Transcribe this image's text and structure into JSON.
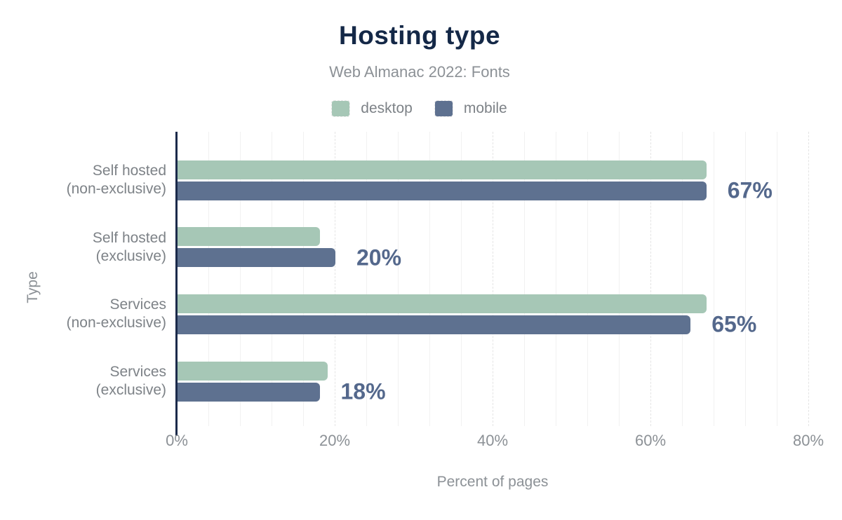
{
  "title": "Hosting type",
  "subtitle": "Web Almanac 2022: Fonts",
  "colors": {
    "desktop": "#a6c7b6",
    "mobile": "#5e7190",
    "value_label": "#54688c",
    "title_text": "#142847",
    "axis_line": "#1b2a4a",
    "muted_text": "#8c9196"
  },
  "legend": [
    {
      "label": "desktop",
      "color": "#a6c7b6"
    },
    {
      "label": "mobile",
      "color": "#5e7190"
    }
  ],
  "chart_data": {
    "type": "bar",
    "orientation": "horizontal",
    "title": "Hosting type",
    "subtitle": "Web Almanac 2022: Fonts",
    "xlabel": "Percent of pages",
    "ylabel": "Type",
    "xlim": [
      0,
      80
    ],
    "x_tick_values": [
      0,
      20,
      40,
      60,
      80
    ],
    "x_tick_labels": [
      "0%",
      "20%",
      "40%",
      "60%",
      "80%"
    ],
    "grid": "vertical minor gridlines every 4%, dashed major every 20%",
    "legend_position": "top",
    "categories": [
      "Self hosted (non-exclusive)",
      "Self hosted (exclusive)",
      "Services (non-exclusive)",
      "Services (exclusive)"
    ],
    "category_lines": [
      [
        "Self hosted",
        "(non-exclusive)"
      ],
      [
        "Self hosted",
        "(exclusive)"
      ],
      [
        "Services",
        "(non-exclusive)"
      ],
      [
        "Services",
        "(exclusive)"
      ]
    ],
    "series": [
      {
        "name": "desktop",
        "values": [
          67,
          18,
          67,
          19
        ]
      },
      {
        "name": "mobile",
        "values": [
          67,
          20,
          65,
          18
        ]
      }
    ],
    "value_labels": [
      "67%",
      "20%",
      "65%",
      "18%"
    ]
  }
}
